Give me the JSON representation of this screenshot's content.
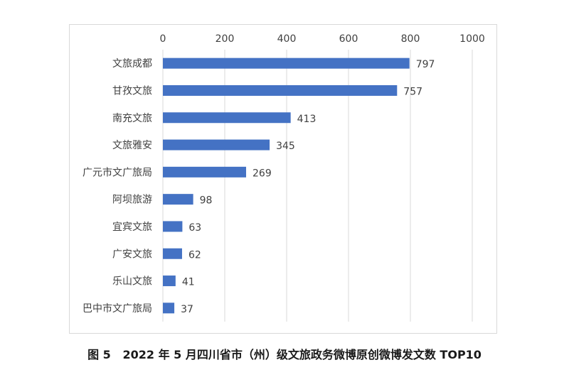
{
  "caption": "图 5   2022 年 5 月四川省市（州）级文旅政务微博原创微博发文数 TOP10",
  "chart_data": {
    "type": "bar",
    "orientation": "horizontal",
    "x_axis_position": "top",
    "xlim": [
      0,
      1000
    ],
    "ticks": [
      0,
      200,
      400,
      600,
      800,
      1000
    ],
    "grid": true,
    "legend": "none",
    "bar_color": "#4472c4",
    "grid_color": "#d9d9d9",
    "categories": [
      "文旅成都",
      "甘孜文旅",
      "南充文旅",
      "文旅雅安",
      "广元市文广旅局",
      "阿坝旅游",
      "宜宾文旅",
      "广安文旅",
      "乐山文旅",
      "巴中市文广旅局"
    ],
    "values": [
      797,
      757,
      413,
      345,
      269,
      98,
      63,
      62,
      41,
      37
    ]
  }
}
